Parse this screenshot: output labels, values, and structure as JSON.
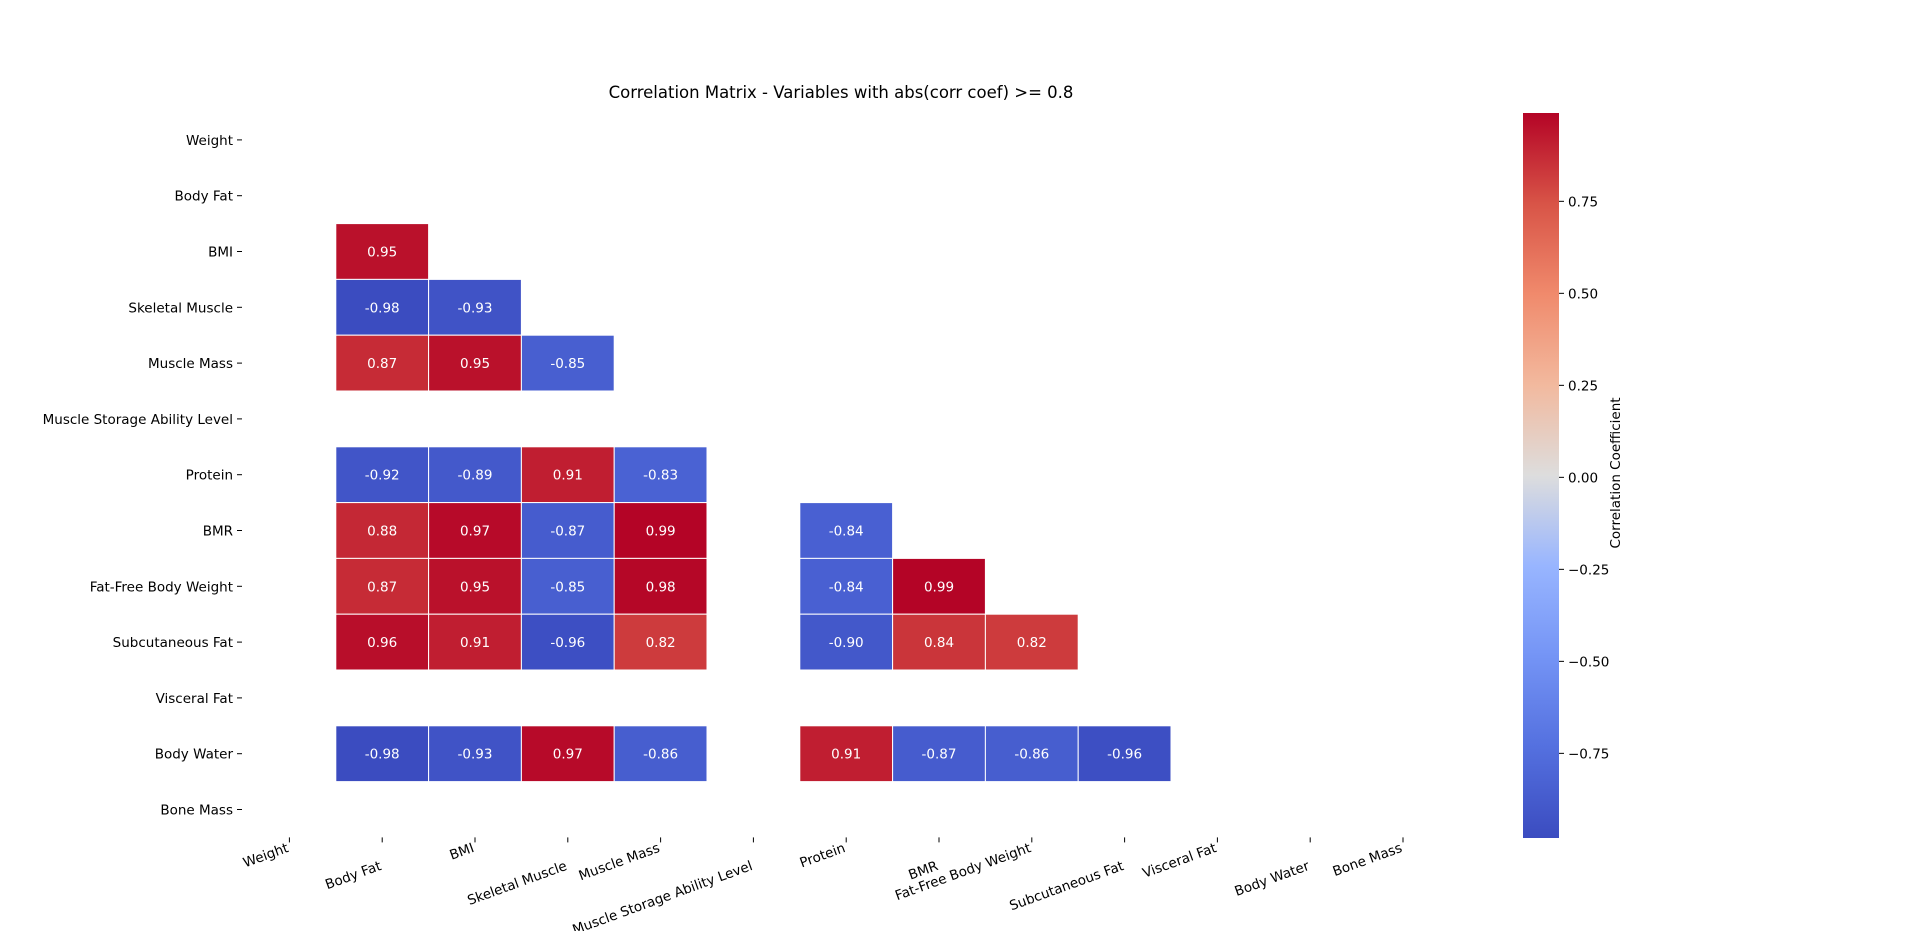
{
  "chart_data": {
    "type": "heatmap",
    "title": "Correlation Matrix - Variables with abs(corr coef) >= 0.8",
    "variables": [
      "Weight",
      "Body Fat",
      "BMI",
      "Skeletal Muscle",
      "Muscle Mass",
      "Muscle Storage Ability Level",
      "Protein",
      "BMR",
      "Fat-Free Body Weight",
      "Subcutaneous Fat",
      "Visceral Fat",
      "Body Water",
      "Bone Mass"
    ],
    "matrix_lower_triangle": [
      [
        null,
        null,
        null,
        null,
        null,
        null,
        null,
        null,
        null,
        null,
        null,
        null,
        null
      ],
      [
        null,
        null,
        null,
        null,
        null,
        null,
        null,
        null,
        null,
        null,
        null,
        null,
        null
      ],
      [
        null,
        0.95,
        null,
        null,
        null,
        null,
        null,
        null,
        null,
        null,
        null,
        null,
        null
      ],
      [
        null,
        -0.98,
        -0.93,
        null,
        null,
        null,
        null,
        null,
        null,
        null,
        null,
        null,
        null
      ],
      [
        null,
        0.87,
        0.95,
        -0.85,
        null,
        null,
        null,
        null,
        null,
        null,
        null,
        null,
        null
      ],
      [
        null,
        null,
        null,
        null,
        null,
        null,
        null,
        null,
        null,
        null,
        null,
        null,
        null
      ],
      [
        null,
        -0.92,
        -0.89,
        0.91,
        -0.83,
        null,
        null,
        null,
        null,
        null,
        null,
        null,
        null
      ],
      [
        null,
        0.88,
        0.97,
        -0.87,
        0.99,
        null,
        -0.84,
        null,
        null,
        null,
        null,
        null,
        null
      ],
      [
        null,
        0.87,
        0.95,
        -0.85,
        0.98,
        null,
        -0.84,
        0.99,
        null,
        null,
        null,
        null,
        null
      ],
      [
        null,
        0.96,
        0.91,
        -0.96,
        0.82,
        null,
        -0.9,
        0.84,
        0.82,
        null,
        null,
        null,
        null
      ],
      [
        null,
        null,
        null,
        null,
        null,
        null,
        null,
        null,
        null,
        null,
        null,
        null,
        null
      ],
      [
        null,
        -0.98,
        -0.93,
        0.97,
        -0.86,
        null,
        0.91,
        -0.87,
        -0.86,
        -0.96,
        null,
        null,
        null
      ],
      [
        null,
        null,
        null,
        null,
        null,
        null,
        null,
        null,
        null,
        null,
        null,
        null,
        null
      ]
    ],
    "value_format": "2 decimals",
    "colormap": "coolwarm",
    "color_range": [
      -0.98,
      0.99
    ],
    "colorbar": {
      "label": "Correlation Coefficient",
      "ticks": [
        "0.75",
        "0.50",
        "0.25",
        "0.00",
        "−0.25",
        "−0.50",
        "−0.75"
      ],
      "tick_values": [
        0.75,
        0.5,
        0.25,
        0.0,
        -0.25,
        -0.5,
        -0.75
      ],
      "placement": "right"
    },
    "grid": false,
    "x_tick_rotation": "angled"
  },
  "colors": {
    "background": "#ffffff",
    "text": "#000000",
    "cell_text": "#ffffff",
    "cell_border": "#ffffff"
  }
}
